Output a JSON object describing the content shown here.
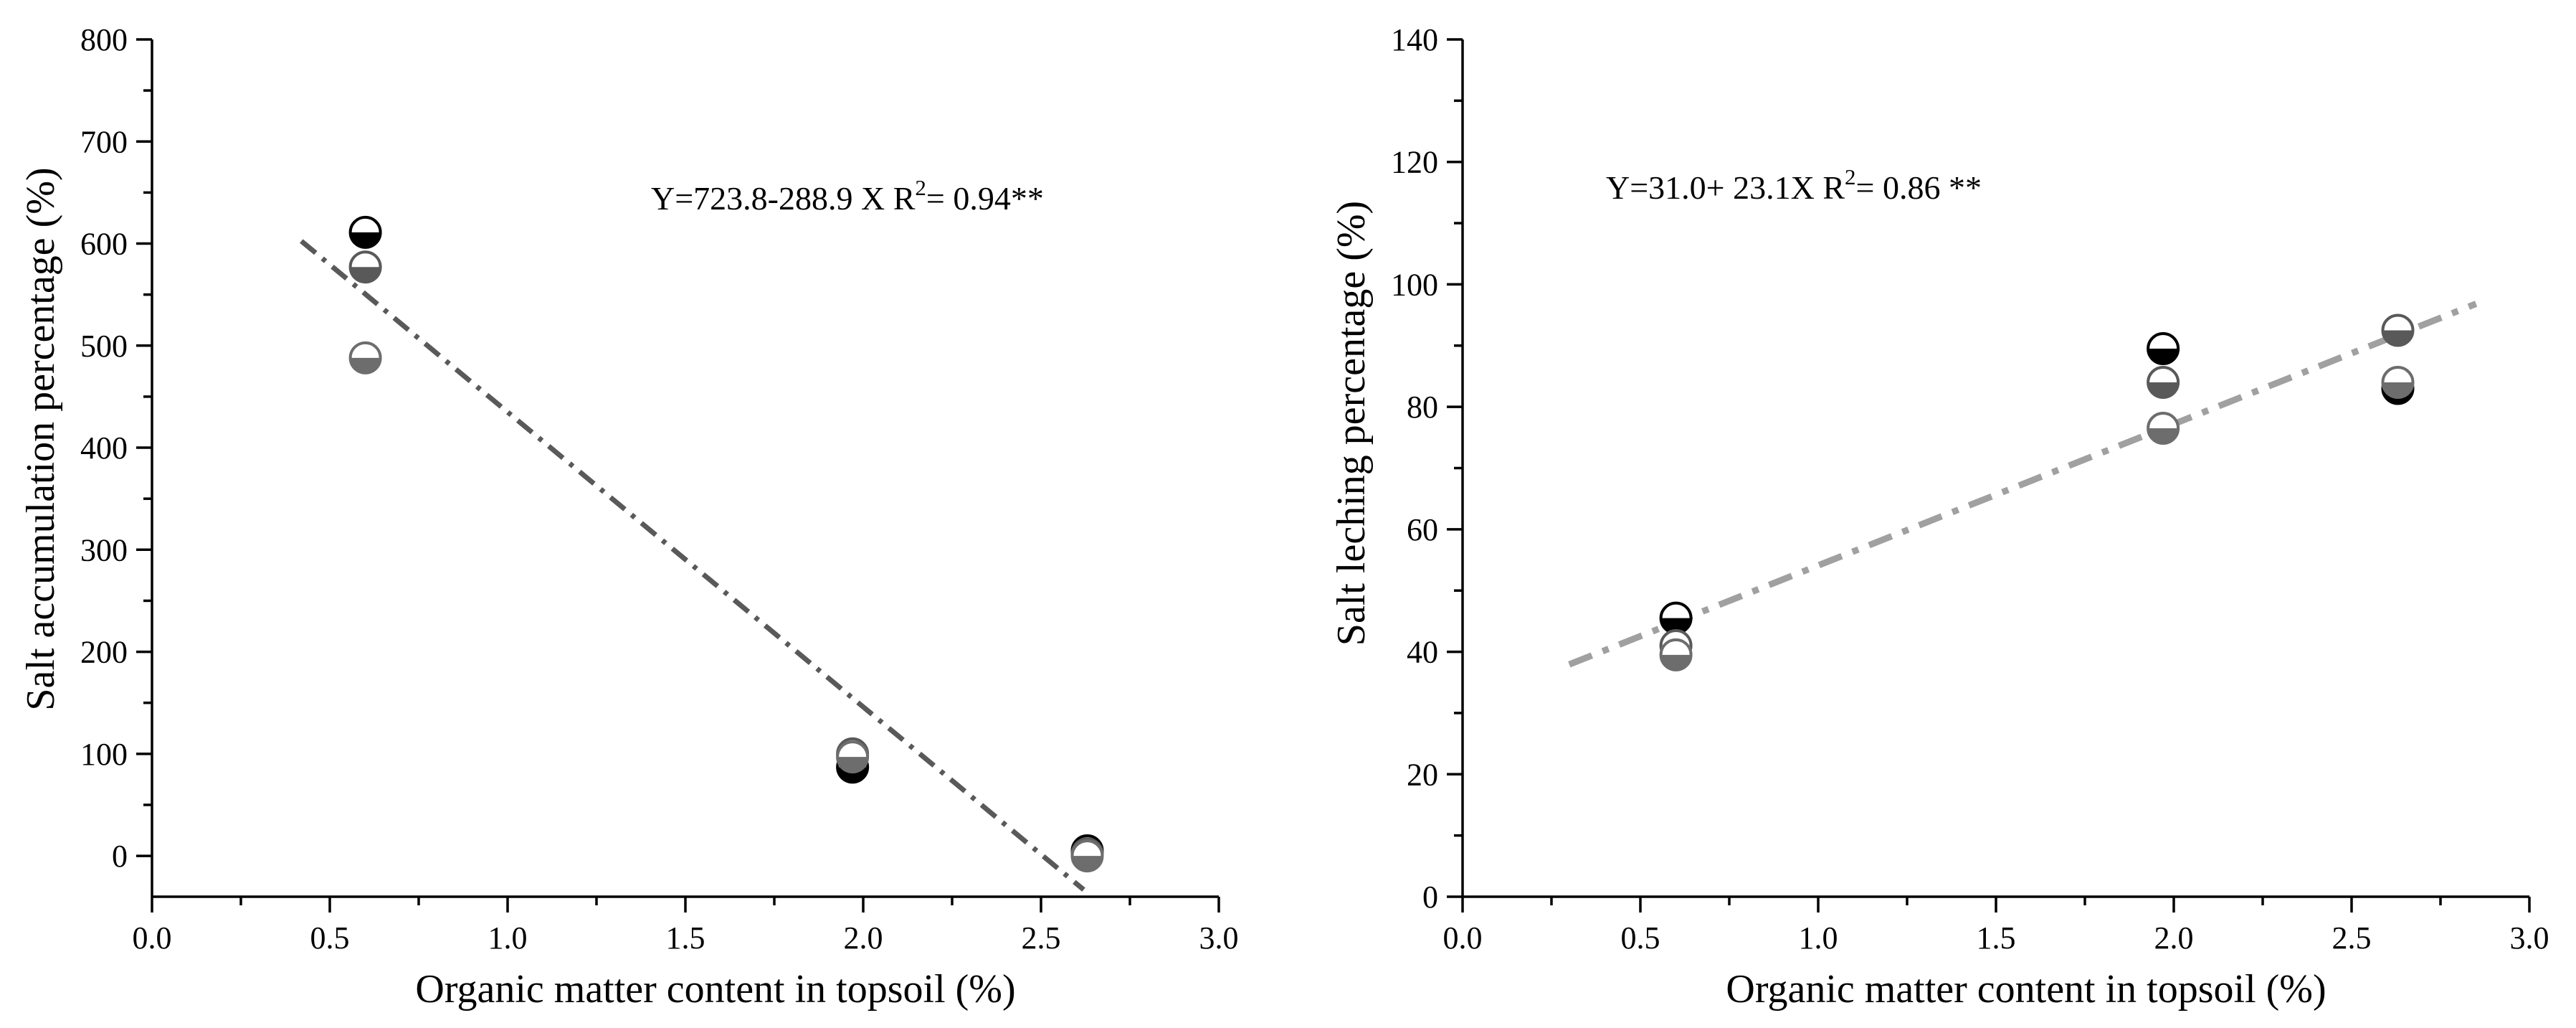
{
  "chart_data": [
    {
      "type": "scatter",
      "name": "salt-accumulation",
      "xlabel": "Organic matter content in topsoil (%)",
      "ylabel": "Salt accumulation percentage (%)",
      "xlim": [
        0.0,
        3.0
      ],
      "ylim": [
        -40,
        800
      ],
      "x_ticks": [
        0.0,
        0.5,
        1.0,
        1.5,
        2.0,
        2.5,
        3.0
      ],
      "x_tick_labels": [
        "0.0",
        "0.5",
        "1.0",
        "1.5",
        "2.0",
        "2.5",
        "3.0"
      ],
      "y_ticks": [
        0,
        100,
        200,
        300,
        400,
        500,
        600,
        700,
        800
      ],
      "y_tick_labels": [
        "0",
        "100",
        "200",
        "300",
        "400",
        "500",
        "600",
        "700",
        "800"
      ],
      "equation": {
        "main": "Y=723.8-288.9 X   R",
        "sup": "2",
        "tail": "= 0.94**"
      },
      "fit": {
        "x_start": 0.42,
        "x_end": 2.62,
        "intercept": 723.8,
        "slope": -288.9,
        "color": "#595959"
      },
      "series": [
        {
          "name": "series-black",
          "fill": "#000000",
          "points": [
            {
              "x": 0.6,
              "y": 611
            },
            {
              "x": 1.97,
              "y": 87
            },
            {
              "x": 2.63,
              "y": 5
            }
          ]
        },
        {
          "name": "series-dark-gray",
          "fill": "#595959",
          "points": [
            {
              "x": 0.6,
              "y": 577
            },
            {
              "x": 1.97,
              "y": 100
            },
            {
              "x": 2.63,
              "y": 2
            }
          ]
        },
        {
          "name": "series-gray",
          "fill": "#6d6d6d",
          "points": [
            {
              "x": 0.6,
              "y": 488
            },
            {
              "x": 1.97,
              "y": 97
            },
            {
              "x": 2.63,
              "y": 0
            }
          ]
        }
      ]
    },
    {
      "type": "scatter",
      "name": "salt-leaching",
      "xlabel": "Organic matter content in topsoil (%)",
      "ylabel": "Salt leching percentage (%)",
      "xlim": [
        0.0,
        3.0
      ],
      "ylim": [
        0,
        140
      ],
      "x_ticks": [
        0.0,
        0.5,
        1.0,
        1.5,
        2.0,
        2.5,
        3.0
      ],
      "x_tick_labels": [
        "0.0",
        "0.5",
        "1.0",
        "1.5",
        "2.0",
        "2.5",
        "3.0"
      ],
      "y_ticks": [
        0,
        20,
        40,
        60,
        80,
        100,
        120,
        140
      ],
      "y_tick_labels": [
        "0",
        "20",
        "40",
        "60",
        "80",
        "100",
        "120",
        "140"
      ],
      "equation": {
        "main": "Y=31.0+ 23.1X   R",
        "sup": "2",
        "tail": "= 0.86 **"
      },
      "fit": {
        "x_start": 0.3,
        "x_end": 2.85,
        "intercept": 31.0,
        "slope": 23.1,
        "color": "#a0a0a0"
      },
      "series": [
        {
          "name": "series-black",
          "fill": "#000000",
          "points": [
            {
              "x": 0.6,
              "y": 45.5
            },
            {
              "x": 1.97,
              "y": 89.5
            },
            {
              "x": 2.63,
              "y": 83
            }
          ]
        },
        {
          "name": "series-dark-gray",
          "fill": "#595959",
          "points": [
            {
              "x": 0.6,
              "y": 41
            },
            {
              "x": 1.97,
              "y": 84
            },
            {
              "x": 2.63,
              "y": 92.5
            }
          ]
        },
        {
          "name": "series-gray",
          "fill": "#6d6d6d",
          "points": [
            {
              "x": 0.6,
              "y": 39.5
            },
            {
              "x": 1.97,
              "y": 76.5
            },
            {
              "x": 2.63,
              "y": 84
            }
          ]
        }
      ]
    }
  ]
}
